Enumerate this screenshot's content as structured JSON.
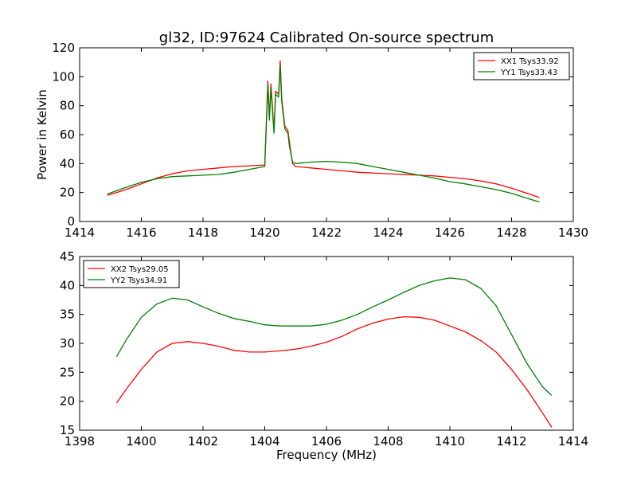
{
  "chart_data": [
    {
      "type": "line",
      "title": "gl32, ID:97624 Calibrated On-source spectrum",
      "xlabel": "",
      "ylabel": "Power in Kelvin",
      "xlim": [
        1414,
        1430
      ],
      "ylim": [
        0,
        120
      ],
      "xticks": [
        "1414",
        "1416",
        "1418",
        "1420",
        "1422",
        "1424",
        "1426",
        "1428",
        "1430"
      ],
      "yticks": [
        "0",
        "20",
        "40",
        "60",
        "80",
        "100",
        "120"
      ],
      "legend_position": "top-right",
      "series": [
        {
          "name": "XX1 Tsys33.92",
          "color": "#ff0000",
          "x": [
            1414.9,
            1415.5,
            1416,
            1416.5,
            1417,
            1417.5,
            1418,
            1418.5,
            1419,
            1419.5,
            1420.0,
            1420.1,
            1420.15,
            1420.2,
            1420.3,
            1420.35,
            1420.45,
            1420.5,
            1420.55,
            1420.65,
            1420.75,
            1420.8,
            1420.9,
            1421.0,
            1421.5,
            1422,
            1422.5,
            1423,
            1423.5,
            1424,
            1424.5,
            1425,
            1425.5,
            1426,
            1426.5,
            1427,
            1427.5,
            1428,
            1428.5,
            1428.9
          ],
          "y": [
            18,
            22,
            26,
            30,
            33,
            35,
            36,
            37,
            38,
            38.5,
            39,
            97,
            72,
            95,
            63,
            90,
            88,
            111,
            85,
            66,
            63,
            55,
            40,
            38,
            37,
            36,
            35,
            34,
            33.5,
            33,
            32.5,
            32,
            31.5,
            30.5,
            29.5,
            28,
            26,
            23,
            19.5,
            16.5
          ]
        },
        {
          "name": "YY1 Tsys33.43",
          "color": "#008000",
          "x": [
            1414.9,
            1415.5,
            1416,
            1416.5,
            1417,
            1417.5,
            1418,
            1418.5,
            1419,
            1419.5,
            1420.0,
            1420.1,
            1420.15,
            1420.2,
            1420.3,
            1420.35,
            1420.45,
            1420.5,
            1420.55,
            1420.65,
            1420.75,
            1420.8,
            1420.9,
            1421.0,
            1421.5,
            1422,
            1422.5,
            1423,
            1423.5,
            1424,
            1424.5,
            1425,
            1425.5,
            1426,
            1426.5,
            1427,
            1427.5,
            1428,
            1428.5,
            1428.9
          ],
          "y": [
            19,
            23.5,
            27,
            29.5,
            31,
            31.5,
            32,
            32.5,
            34,
            36,
            38,
            95,
            70,
            92,
            61,
            88,
            86,
            108,
            83,
            64,
            61,
            52,
            41,
            40,
            41,
            41.5,
            41,
            40,
            38,
            36,
            34,
            32,
            30,
            27.5,
            26,
            24,
            22,
            19.5,
            16,
            13.5
          ]
        }
      ]
    },
    {
      "type": "line",
      "title": "",
      "xlabel": "Frequency (MHz)",
      "ylabel": "",
      "xlim": [
        1398,
        1414
      ],
      "ylim": [
        15,
        45
      ],
      "xticks": [
        "1398",
        "1400",
        "1402",
        "1404",
        "1406",
        "1408",
        "1410",
        "1412",
        "1414"
      ],
      "yticks": [
        "15",
        "20",
        "25",
        "30",
        "35",
        "40",
        "45"
      ],
      "legend_position": "top-left",
      "series": [
        {
          "name": "XX2 Tsys29.05",
          "color": "#ff0000",
          "x": [
            1399.2,
            1399.5,
            1400,
            1400.5,
            1401,
            1401.5,
            1402,
            1402.5,
            1403,
            1403.5,
            1404,
            1404.5,
            1405,
            1405.5,
            1406,
            1406.5,
            1407,
            1407.5,
            1408,
            1408.5,
            1409,
            1409.5,
            1410,
            1410.5,
            1411,
            1411.5,
            1412,
            1412.5,
            1413,
            1413.3
          ],
          "y": [
            19.7,
            22,
            25.5,
            28.5,
            30,
            30.3,
            30,
            29.5,
            28.8,
            28.5,
            28.5,
            28.7,
            29,
            29.5,
            30.2,
            31.2,
            32.5,
            33.5,
            34.2,
            34.6,
            34.5,
            34,
            33,
            32,
            30.5,
            28.5,
            25.5,
            22,
            18,
            15.5
          ]
        },
        {
          "name": "YY2 Tsys34.91",
          "color": "#008000",
          "x": [
            1399.2,
            1399.5,
            1400,
            1400.5,
            1401,
            1401.5,
            1402,
            1402.5,
            1403,
            1403.5,
            1404,
            1404.5,
            1405,
            1405.5,
            1406,
            1406.5,
            1407,
            1407.5,
            1408,
            1408.5,
            1409,
            1409.5,
            1410,
            1410.5,
            1411,
            1411.5,
            1412,
            1412.5,
            1413,
            1413.3
          ],
          "y": [
            27.7,
            30.5,
            34.5,
            36.8,
            37.8,
            37.5,
            36.3,
            35.2,
            34.3,
            33.8,
            33.2,
            33,
            33,
            33,
            33.3,
            34,
            35,
            36.3,
            37.5,
            38.8,
            40,
            40.8,
            41.3,
            41,
            39.5,
            36.5,
            31.5,
            26.5,
            22.5,
            21
          ]
        }
      ]
    }
  ]
}
